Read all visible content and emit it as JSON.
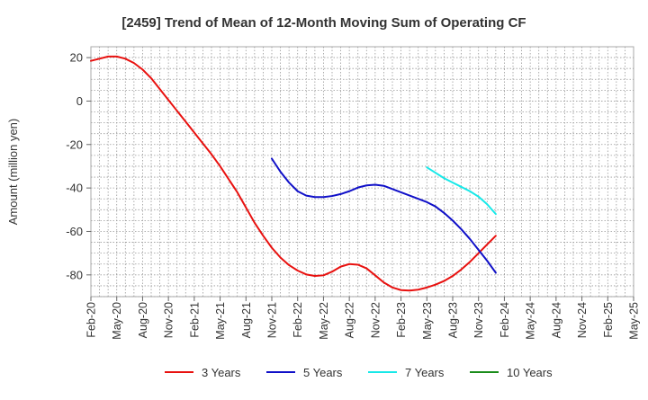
{
  "chart_data": {
    "type": "line",
    "title": "[2459]  Trend of Mean of 12-Month Moving Sum of Operating CF",
    "ylabel": "Amount (million yen)",
    "xlabel": "",
    "ylim": [
      -90,
      25
    ],
    "yticks": [
      20,
      0,
      -20,
      -40,
      -60,
      -80
    ],
    "xtick_labels": [
      "Feb-20",
      "May-20",
      "Aug-20",
      "Nov-20",
      "Feb-21",
      "May-21",
      "Aug-21",
      "Nov-21",
      "Feb-22",
      "May-22",
      "Aug-22",
      "Nov-22",
      "Feb-23",
      "May-23",
      "Aug-23",
      "Nov-23",
      "Feb-24",
      "May-24",
      "Aug-24",
      "Nov-24",
      "Feb-25",
      "May-25"
    ],
    "grid": true,
    "legend_position": "bottom",
    "series": [
      {
        "name": "3 Years",
        "color": "#e8110f",
        "start_index": 0,
        "values": [
          18.5,
          19.5,
          20.5,
          20.5,
          19.5,
          17.5,
          14.5,
          10.5,
          5.5,
          0.5,
          -4.5,
          -9.5,
          -14.5,
          -19.5,
          -24.5,
          -30,
          -36,
          -42,
          -49,
          -56,
          -62,
          -67.5,
          -72,
          -75.5,
          -78,
          -79.8,
          -80.5,
          -80.2,
          -78.5,
          -76.2,
          -75,
          -75.3,
          -77,
          -80.2,
          -83.5,
          -85.8,
          -87,
          -87.2,
          -86.8,
          -85.8,
          -84.5,
          -82.8,
          -80.5,
          -77.5,
          -74,
          -70,
          -66,
          -62
        ]
      },
      {
        "name": "5 Years",
        "color": "#1010c8",
        "start_index": 21,
        "values": [
          -26.5,
          -32.5,
          -37.5,
          -41.5,
          -43.5,
          -44.2,
          -44.2,
          -43.7,
          -42.8,
          -41.5,
          -39.8,
          -38.8,
          -38.5,
          -39,
          -40.5,
          -42,
          -43.5,
          -45,
          -46.5,
          -48.5,
          -51.5,
          -55,
          -59,
          -63.5,
          -68.5,
          -73.5,
          -79
        ]
      },
      {
        "name": "7 Years",
        "color": "#17e8e8",
        "start_index": 39,
        "values": [
          -30.5,
          -33,
          -35.5,
          -37.5,
          -39.5,
          -41.5,
          -44,
          -47.5,
          -52
        ]
      },
      {
        "name": "10 Years",
        "color": "#1a8c1a",
        "start_index": 0,
        "values": []
      }
    ]
  }
}
